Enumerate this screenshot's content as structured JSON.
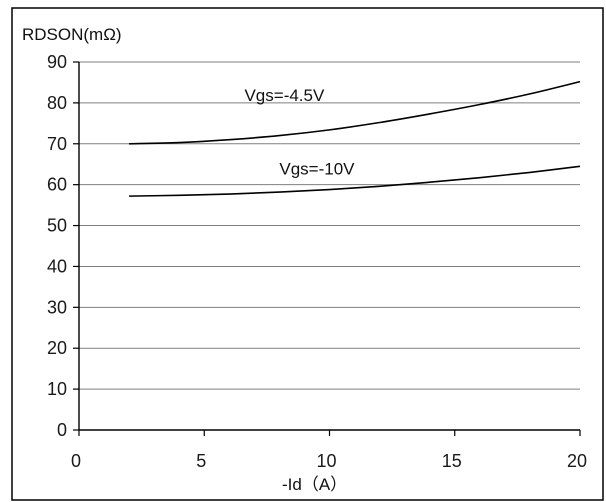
{
  "chart_data": {
    "type": "line",
    "title": "",
    "ylabel": "RDSON(mΩ)",
    "xlabel": "-Id（A）",
    "xlim": [
      0,
      20
    ],
    "ylim": [
      0,
      90
    ],
    "x_ticks": [
      0,
      5,
      10,
      15,
      20
    ],
    "y_ticks": [
      0,
      10,
      20,
      30,
      40,
      50,
      60,
      70,
      80,
      90
    ],
    "grid": {
      "horizontal": true,
      "vertical": false
    },
    "legend": "none",
    "series": [
      {
        "name": "Vgs=-4.5V",
        "x": [
          2,
          4,
          6,
          8,
          10,
          12,
          14,
          16,
          18,
          20
        ],
        "y": [
          70,
          70.3,
          71.0,
          72.0,
          73.4,
          75.2,
          77.3,
          79.6,
          82.2,
          85.2
        ]
      },
      {
        "name": "Vgs=-10V",
        "x": [
          2,
          4,
          6,
          8,
          10,
          12,
          14,
          16,
          18,
          20
        ],
        "y": [
          57.2,
          57.4,
          57.7,
          58.2,
          58.8,
          59.6,
          60.6,
          61.7,
          63.0,
          64.5
        ]
      }
    ],
    "annotations": [
      {
        "text": "Vgs=-4.5V",
        "series": 0
      },
      {
        "text": "Vgs=-10V",
        "series": 1
      }
    ],
    "colors": {
      "line": "#000000",
      "grid": "#7f7f7f",
      "axis": "#000000",
      "border": "#000000"
    }
  }
}
